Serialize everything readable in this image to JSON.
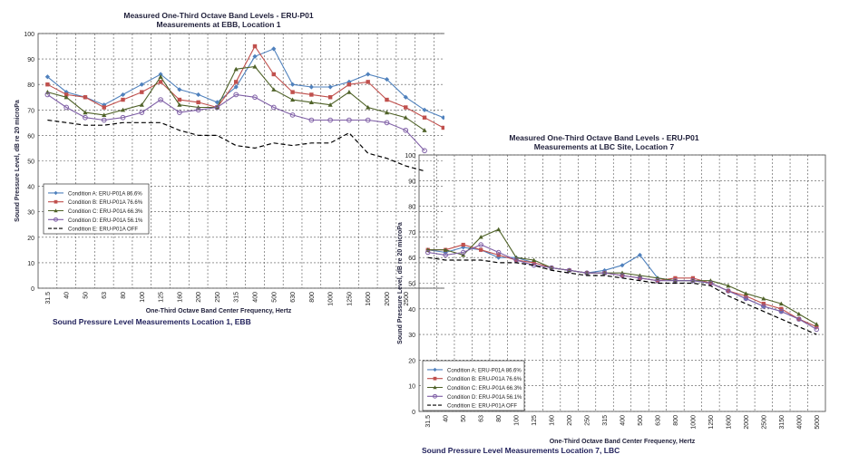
{
  "chart_data": [
    {
      "type": "line",
      "title": "Measured One-Third Octave Band Levels - ERU-P01",
      "subtitle": "Measurements at EBB, Location 1",
      "xlabel": "One-Third Octave Band Center Frequency, Hertz",
      "ylabel": "Sound Pressure Level, dB re 20 microPa",
      "ylim": [
        0,
        100
      ],
      "yticks": [
        0,
        10,
        20,
        30,
        40,
        50,
        60,
        70,
        80,
        90,
        100
      ],
      "grid": true,
      "legend_position": "lower-left",
      "categories": [
        "31.5",
        "40",
        "50",
        "63",
        "80",
        "100",
        "125",
        "160",
        "200",
        "250",
        "315",
        "400",
        "500",
        "630",
        "800",
        "1000",
        "1250",
        "1600",
        "2000",
        "2500",
        "3150",
        "4000",
        "5000"
      ],
      "tick_labels": [
        "31.5",
        "40",
        "50",
        "63",
        "80",
        "100",
        "125",
        "160",
        "200",
        "250",
        "315",
        "400",
        "500",
        "630",
        "800",
        "1000",
        "1250",
        "1600",
        "2000",
        "2500"
      ],
      "series": [
        {
          "name": "Condition A: ERU-P01A 86.6%",
          "color": "#4f81bd",
          "marker": "diamond",
          "dash": false,
          "values": [
            83,
            77,
            75,
            72,
            76,
            80,
            84,
            78,
            76,
            73,
            79,
            91,
            94,
            80,
            79,
            79,
            81,
            84,
            82,
            75,
            70,
            67,
            65
          ]
        },
        {
          "name": "Condition B: ERU-P01A 76.6%",
          "color": "#c0504d",
          "marker": "square",
          "dash": false,
          "values": [
            80,
            76,
            75,
            71,
            74,
            77,
            81,
            74,
            73,
            71,
            81,
            95,
            84,
            77,
            76,
            75,
            80,
            81,
            74,
            71,
            67,
            63,
            null
          ]
        },
        {
          "name": "Condition C: ERU-P01A 66.3%",
          "color": "#4f6228",
          "marker": "triangle",
          "dash": false,
          "values": [
            77,
            75,
            69,
            68,
            70,
            72,
            83,
            72,
            71,
            71,
            86,
            87,
            78,
            74,
            73,
            72,
            77,
            71,
            69,
            67,
            62,
            null,
            null
          ]
        },
        {
          "name": "Condition D: ERU-P01A 56.1%",
          "color": "#7f5fa6",
          "marker": "circle",
          "dash": false,
          "values": [
            76,
            71,
            67,
            66,
            67,
            69,
            74,
            69,
            70,
            71,
            76,
            75,
            71,
            68,
            66,
            66,
            66,
            66,
            65,
            62,
            54,
            null,
            null
          ]
        },
        {
          "name": "Condition E: ERU-P01A OFF",
          "color": "#000000",
          "marker": "none",
          "dash": true,
          "values": [
            66,
            65,
            64,
            64,
            65,
            65,
            65,
            62,
            60,
            60,
            56,
            55,
            57,
            56,
            57,
            57,
            61,
            53,
            51,
            48,
            46,
            null,
            null
          ]
        }
      ]
    },
    {
      "type": "line",
      "title": "Measured One-Third Octave Band Levels - ERU-P01",
      "subtitle": "Measurements at LBC Site, Location 7",
      "xlabel": "One-Third Octave Band Center Frequency, Hertz",
      "ylabel": "Sound Pressure Level, dB re 20 microPa",
      "ylim": [
        0,
        100
      ],
      "yticks": [
        0,
        10,
        20,
        30,
        40,
        50,
        60,
        70,
        80,
        90,
        100
      ],
      "grid": true,
      "legend_position": "lower-left",
      "categories": [
        "31.5",
        "40",
        "50",
        "63",
        "80",
        "100",
        "125",
        "160",
        "200",
        "250",
        "315",
        "400",
        "500",
        "630",
        "800",
        "1000",
        "1250",
        "1600",
        "2000",
        "2500",
        "3150",
        "4000",
        "5000"
      ],
      "tick_labels": [
        "31.5",
        "40",
        "50",
        "63",
        "80",
        "100",
        "125",
        "160",
        "200",
        "250",
        "315",
        "400",
        "500",
        "630",
        "800",
        "1000",
        "1250",
        "1600",
        "2000",
        "2500",
        "3150",
        "4000",
        "5000"
      ],
      "series": [
        {
          "name": "Condition A: ERU-P01A 86.6%",
          "color": "#4f81bd",
          "marker": "diamond",
          "dash": false,
          "values": [
            63,
            62,
            64,
            63,
            60,
            60,
            58,
            56,
            55,
            54,
            55,
            57,
            61,
            52,
            51,
            51,
            50,
            47,
            44,
            41,
            39,
            36,
            33
          ]
        },
        {
          "name": "Condition B: ERU-P01A 76.6%",
          "color": "#c0504d",
          "marker": "square",
          "dash": false,
          "values": [
            63,
            63,
            65,
            63,
            61,
            59,
            58,
            56,
            55,
            54,
            54,
            53,
            52,
            51,
            52,
            52,
            50,
            47,
            45,
            42,
            40,
            36,
            33
          ]
        },
        {
          "name": "Condition C: ERU-P01A 66.3%",
          "color": "#4f6228",
          "marker": "triangle",
          "dash": false,
          "values": [
            63,
            63,
            61,
            68,
            71,
            60,
            59,
            56,
            55,
            54,
            54,
            54,
            53,
            52,
            51,
            51,
            51,
            49,
            46,
            44,
            42,
            38,
            34
          ]
        },
        {
          "name": "Condition D: ERU-P01A 56.1%",
          "color": "#7f5fa6",
          "marker": "circle",
          "dash": false,
          "values": [
            62,
            61,
            62,
            65,
            62,
            59,
            57,
            56,
            55,
            54,
            54,
            53,
            52,
            51,
            51,
            51,
            50,
            47,
            44,
            41,
            39,
            36,
            32
          ]
        },
        {
          "name": "Condition E: ERU-P01A OFF",
          "color": "#000000",
          "marker": "none",
          "dash": true,
          "values": [
            60,
            59,
            59,
            59,
            58,
            58,
            57,
            55,
            54,
            53,
            53,
            52,
            51,
            50,
            50,
            50,
            49,
            45,
            42,
            39,
            36,
            33,
            30
          ]
        }
      ]
    }
  ],
  "captions": {
    "left": "Sound Pressure Level Measurements Location 1, EBB",
    "right": "Sound Pressure Level Measurements Location 7, LBC"
  }
}
